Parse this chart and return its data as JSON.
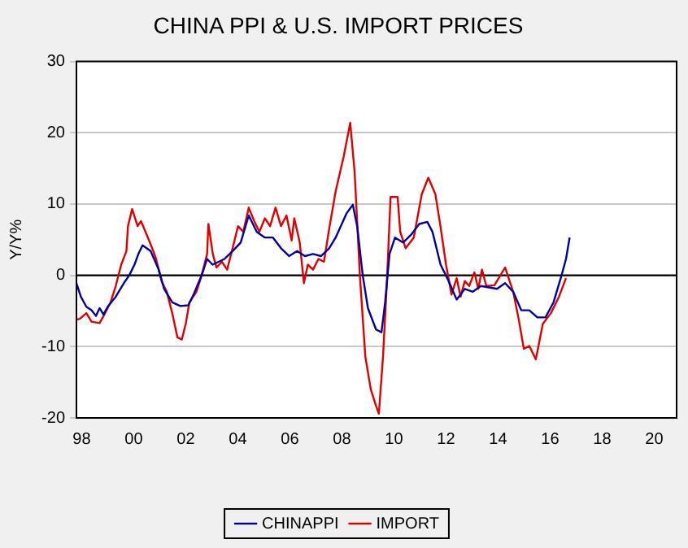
{
  "chart_data": {
    "type": "line",
    "title": "CHINA PPI & U.S. IMPORT PRICES",
    "ylabel": "Y/Y%",
    "xlim": [
      1997.8,
      2020.86
    ],
    "xticks": [
      {
        "value": 1998,
        "label": "98"
      },
      {
        "value": 2000,
        "label": "00"
      },
      {
        "value": 2002,
        "label": "02"
      },
      {
        "value": 2004,
        "label": "04"
      },
      {
        "value": 2006,
        "label": "06"
      },
      {
        "value": 2008,
        "label": "08"
      },
      {
        "value": 2010,
        "label": "10"
      },
      {
        "value": 2012,
        "label": "12"
      },
      {
        "value": 2014,
        "label": "14"
      },
      {
        "value": 2016,
        "label": "16"
      },
      {
        "value": 2018,
        "label": "18"
      },
      {
        "value": 2020,
        "label": "20"
      }
    ],
    "ylim": [
      -20,
      30
    ],
    "yticks": [
      -20,
      -10,
      0,
      10,
      20,
      30
    ],
    "grid": "y",
    "legend": "bottom",
    "marker": "none",
    "line_style": "solid",
    "ref_lines": [
      {
        "axis": "y",
        "value": 0,
        "color": "#000000"
      }
    ],
    "series": [
      {
        "name": "CHINAPPI",
        "color": "#0000a0",
        "x": [
          1997.8,
          1997.97,
          1998.18,
          1998.38,
          1998.55,
          1998.69,
          1998.84,
          1999.0,
          1999.31,
          1999.62,
          1999.83,
          2000.03,
          2000.18,
          2000.34,
          2000.65,
          2000.96,
          2001.17,
          2001.48,
          2001.79,
          2002.1,
          2002.3,
          2002.61,
          2002.82,
          2003.03,
          2003.49,
          2003.8,
          2004.11,
          2004.42,
          2004.73,
          2005.04,
          2005.35,
          2005.66,
          2005.97,
          2006.28,
          2006.58,
          2006.89,
          2007.2,
          2007.51,
          2007.76,
          2008.18,
          2008.42,
          2008.59,
          2008.8,
          2009.0,
          2009.31,
          2009.52,
          2009.66,
          2009.83,
          2010.04,
          2010.35,
          2010.66,
          2010.97,
          2011.28,
          2011.48,
          2011.79,
          2012.1,
          2012.41,
          2012.72,
          2013.03,
          2013.34,
          2013.65,
          2013.96,
          2014.27,
          2014.58,
          2014.89,
          2015.2,
          2015.51,
          2015.82,
          2016.13,
          2016.44,
          2016.61,
          2016.75
        ],
        "values": [
          -1.1,
          -3.0,
          -4.4,
          -4.9,
          -5.7,
          -4.6,
          -5.5,
          -4.4,
          -3.0,
          -1.1,
          0,
          1.5,
          3.0,
          4.2,
          3.4,
          0.8,
          -1.9,
          -3.8,
          -4.3,
          -4.2,
          -2.7,
          0,
          2.3,
          1.5,
          2.3,
          3.4,
          4.6,
          8.4,
          6.1,
          5.3,
          5.3,
          3.8,
          2.7,
          3.4,
          2.7,
          3.0,
          2.7,
          3.8,
          5.3,
          8.7,
          9.9,
          6.8,
          0,
          -4.6,
          -7.6,
          -8.0,
          -3.8,
          3.0,
          5.3,
          4.6,
          5.7,
          7.2,
          7.5,
          6.1,
          1.5,
          -0.8,
          -3.4,
          -1.9,
          -2.3,
          -1.5,
          -1.7,
          -1.9,
          -1.1,
          -2.3,
          -4.9,
          -4.9,
          -5.9,
          -5.9,
          -3.8,
          0,
          2.3,
          5.3
        ]
      },
      {
        "name": "IMPORT",
        "color": "#e00000",
        "x": [
          1997.8,
          1997.93,
          1998.18,
          1998.38,
          1998.69,
          1998.84,
          1999.11,
          1999.31,
          1999.52,
          1999.72,
          1999.78,
          1999.94,
          2000.15,
          2000.28,
          2000.5,
          2000.71,
          2000.86,
          2001.07,
          2001.27,
          2001.48,
          2001.68,
          2001.85,
          2002.0,
          2002.14,
          2002.41,
          2002.61,
          2002.82,
          2002.87,
          2003.04,
          2003.18,
          2003.39,
          2003.59,
          2003.8,
          2004.01,
          2004.21,
          2004.42,
          2004.63,
          2004.83,
          2005.04,
          2005.24,
          2005.45,
          2005.66,
          2005.87,
          2006.07,
          2006.17,
          2006.38,
          2006.54,
          2006.69,
          2006.89,
          2007.1,
          2007.31,
          2007.51,
          2007.76,
          2008.07,
          2008.32,
          2008.49,
          2008.69,
          2008.9,
          2009.11,
          2009.31,
          2009.42,
          2009.58,
          2009.73,
          2009.87,
          2010.14,
          2010.24,
          2010.45,
          2010.76,
          2011.07,
          2011.32,
          2011.59,
          2011.79,
          2012.0,
          2012.21,
          2012.41,
          2012.56,
          2012.72,
          2012.89,
          2013.09,
          2013.24,
          2013.38,
          2013.55,
          2013.86,
          2014.27,
          2014.58,
          2014.79,
          2014.99,
          2015.2,
          2015.45,
          2015.72,
          2016.03,
          2016.34,
          2016.61
        ],
        "values": [
          -6.2,
          -6.1,
          -5.3,
          -6.5,
          -6.7,
          -5.7,
          -3.8,
          -1.5,
          1.5,
          3.4,
          6.9,
          9.3,
          6.9,
          7.6,
          5.7,
          3.8,
          2.3,
          -0.8,
          -2.3,
          -5.3,
          -8.7,
          -9.0,
          -6.8,
          -3.8,
          -2.3,
          0,
          3.0,
          7.2,
          3.0,
          1.1,
          1.9,
          0.8,
          3.8,
          6.9,
          6.1,
          9.5,
          7.6,
          6.1,
          8.0,
          6.9,
          9.5,
          6.9,
          8.4,
          4.9,
          8.0,
          4.6,
          -1.1,
          1.5,
          0.8,
          2.3,
          1.9,
          6.5,
          11.8,
          16.7,
          21.4,
          14.4,
          0,
          -11.4,
          -16.0,
          -18.3,
          -19.4,
          -11.4,
          -0.8,
          11.0,
          11.0,
          6.1,
          3.8,
          5.3,
          11.4,
          13.7,
          11.4,
          6.8,
          1.5,
          -2.7,
          -0.4,
          -3.0,
          -0.8,
          -1.5,
          0.4,
          -1.9,
          0.8,
          -1.5,
          -1.4,
          1.1,
          -2.3,
          -6.1,
          -10.3,
          -9.9,
          -11.8,
          -6.8,
          -5.3,
          -3.0,
          -0.4
        ]
      }
    ]
  }
}
